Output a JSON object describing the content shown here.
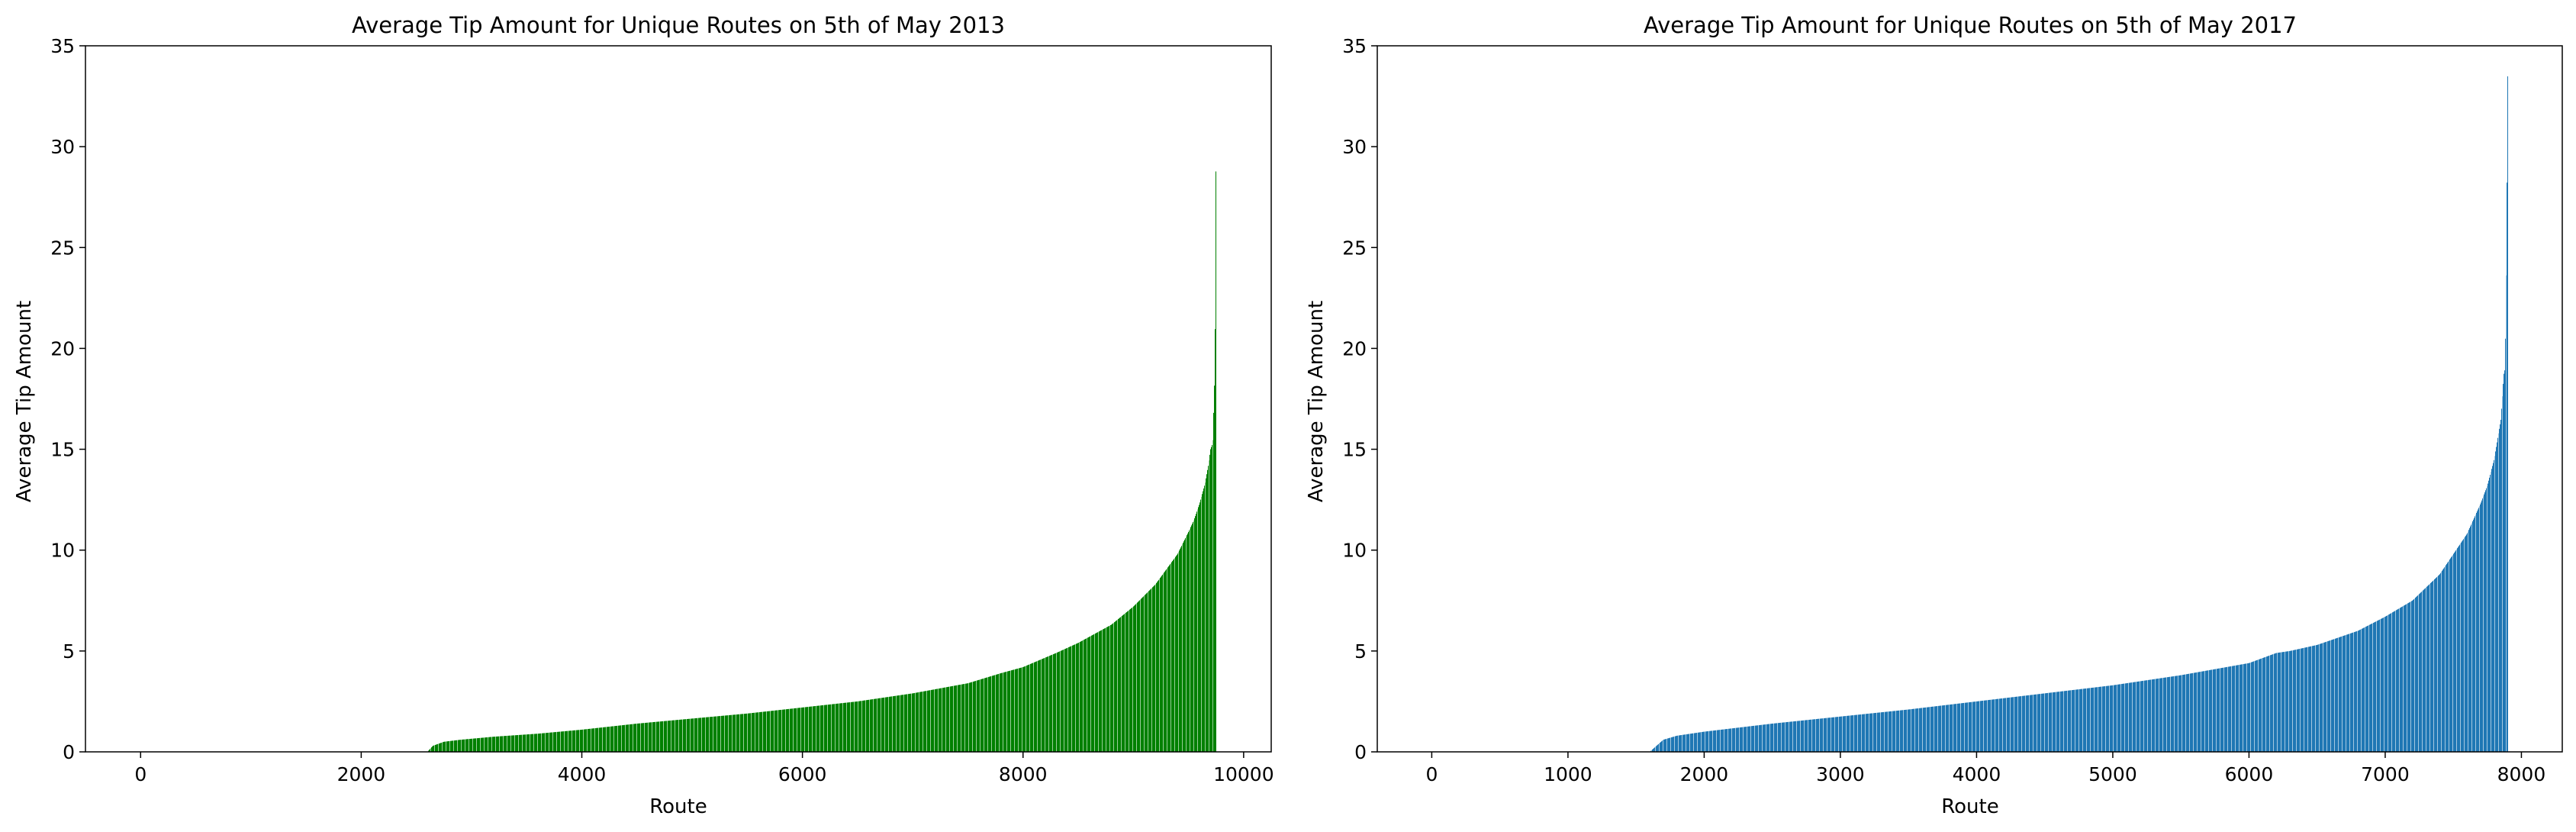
{
  "chart_data": [
    {
      "type": "bar",
      "title": "Average Tip Amount for Unique Routes on 5th of May 2013",
      "xlabel": "Route",
      "ylabel": "Average Tip Amount",
      "xlim": [
        -500,
        10250
      ],
      "ylim": [
        0,
        35
      ],
      "xticks": [
        0,
        2000,
        4000,
        6000,
        8000,
        10000
      ],
      "yticks": [
        0,
        5,
        10,
        15,
        20,
        25,
        30,
        35
      ],
      "grid": false,
      "legend": "none",
      "color": "#008000",
      "route_count": 9750,
      "curve": {
        "x": [
          2600,
          2650,
          2750,
          2900,
          3200,
          3600,
          4000,
          4500,
          5000,
          5500,
          6000,
          6500,
          7000,
          7500,
          7800,
          8000,
          8300,
          8500,
          8800,
          9000,
          9200,
          9400,
          9500,
          9550,
          9600,
          9650,
          9680,
          9700,
          9720,
          9740,
          9750
        ],
        "y": [
          0.0,
          0.3,
          0.5,
          0.6,
          0.75,
          0.9,
          1.1,
          1.4,
          1.65,
          1.9,
          2.2,
          2.5,
          2.9,
          3.4,
          3.9,
          4.2,
          4.9,
          5.4,
          6.3,
          7.2,
          8.3,
          9.8,
          10.9,
          11.5,
          12.3,
          13.3,
          14.2,
          15.0,
          15.3,
          19.2,
          30.5
        ]
      }
    },
    {
      "type": "bar",
      "title": "Average Tip Amount for Unique Routes on 5th of May 2017",
      "xlabel": "Route",
      "ylabel": "Average Tip Amount",
      "xlim": [
        -400,
        8300
      ],
      "ylim": [
        0,
        35
      ],
      "xticks": [
        0,
        1000,
        2000,
        3000,
        4000,
        5000,
        6000,
        7000,
        8000
      ],
      "yticks": [
        0,
        5,
        10,
        15,
        20,
        25,
        30,
        35
      ],
      "grid": false,
      "legend": "none",
      "color": "#1f77b4",
      "route_count": 7900,
      "curve": {
        "x": [
          1600,
          1650,
          1700,
          1800,
          2000,
          2500,
          3000,
          3500,
          4000,
          4500,
          5000,
          5500,
          6000,
          6200,
          6300,
          6500,
          6800,
          7000,
          7200,
          7400,
          7500,
          7600,
          7700,
          7750,
          7800,
          7830,
          7850,
          7870,
          7880,
          7890,
          7900
        ],
        "y": [
          0.0,
          0.3,
          0.6,
          0.8,
          1.0,
          1.4,
          1.75,
          2.1,
          2.5,
          2.9,
          3.3,
          3.8,
          4.4,
          4.9,
          5.0,
          5.3,
          6.0,
          6.7,
          7.5,
          8.8,
          9.8,
          10.8,
          12.3,
          13.2,
          14.5,
          15.7,
          16.5,
          18.7,
          19.0,
          24.6,
          34.0
        ]
      }
    }
  ]
}
